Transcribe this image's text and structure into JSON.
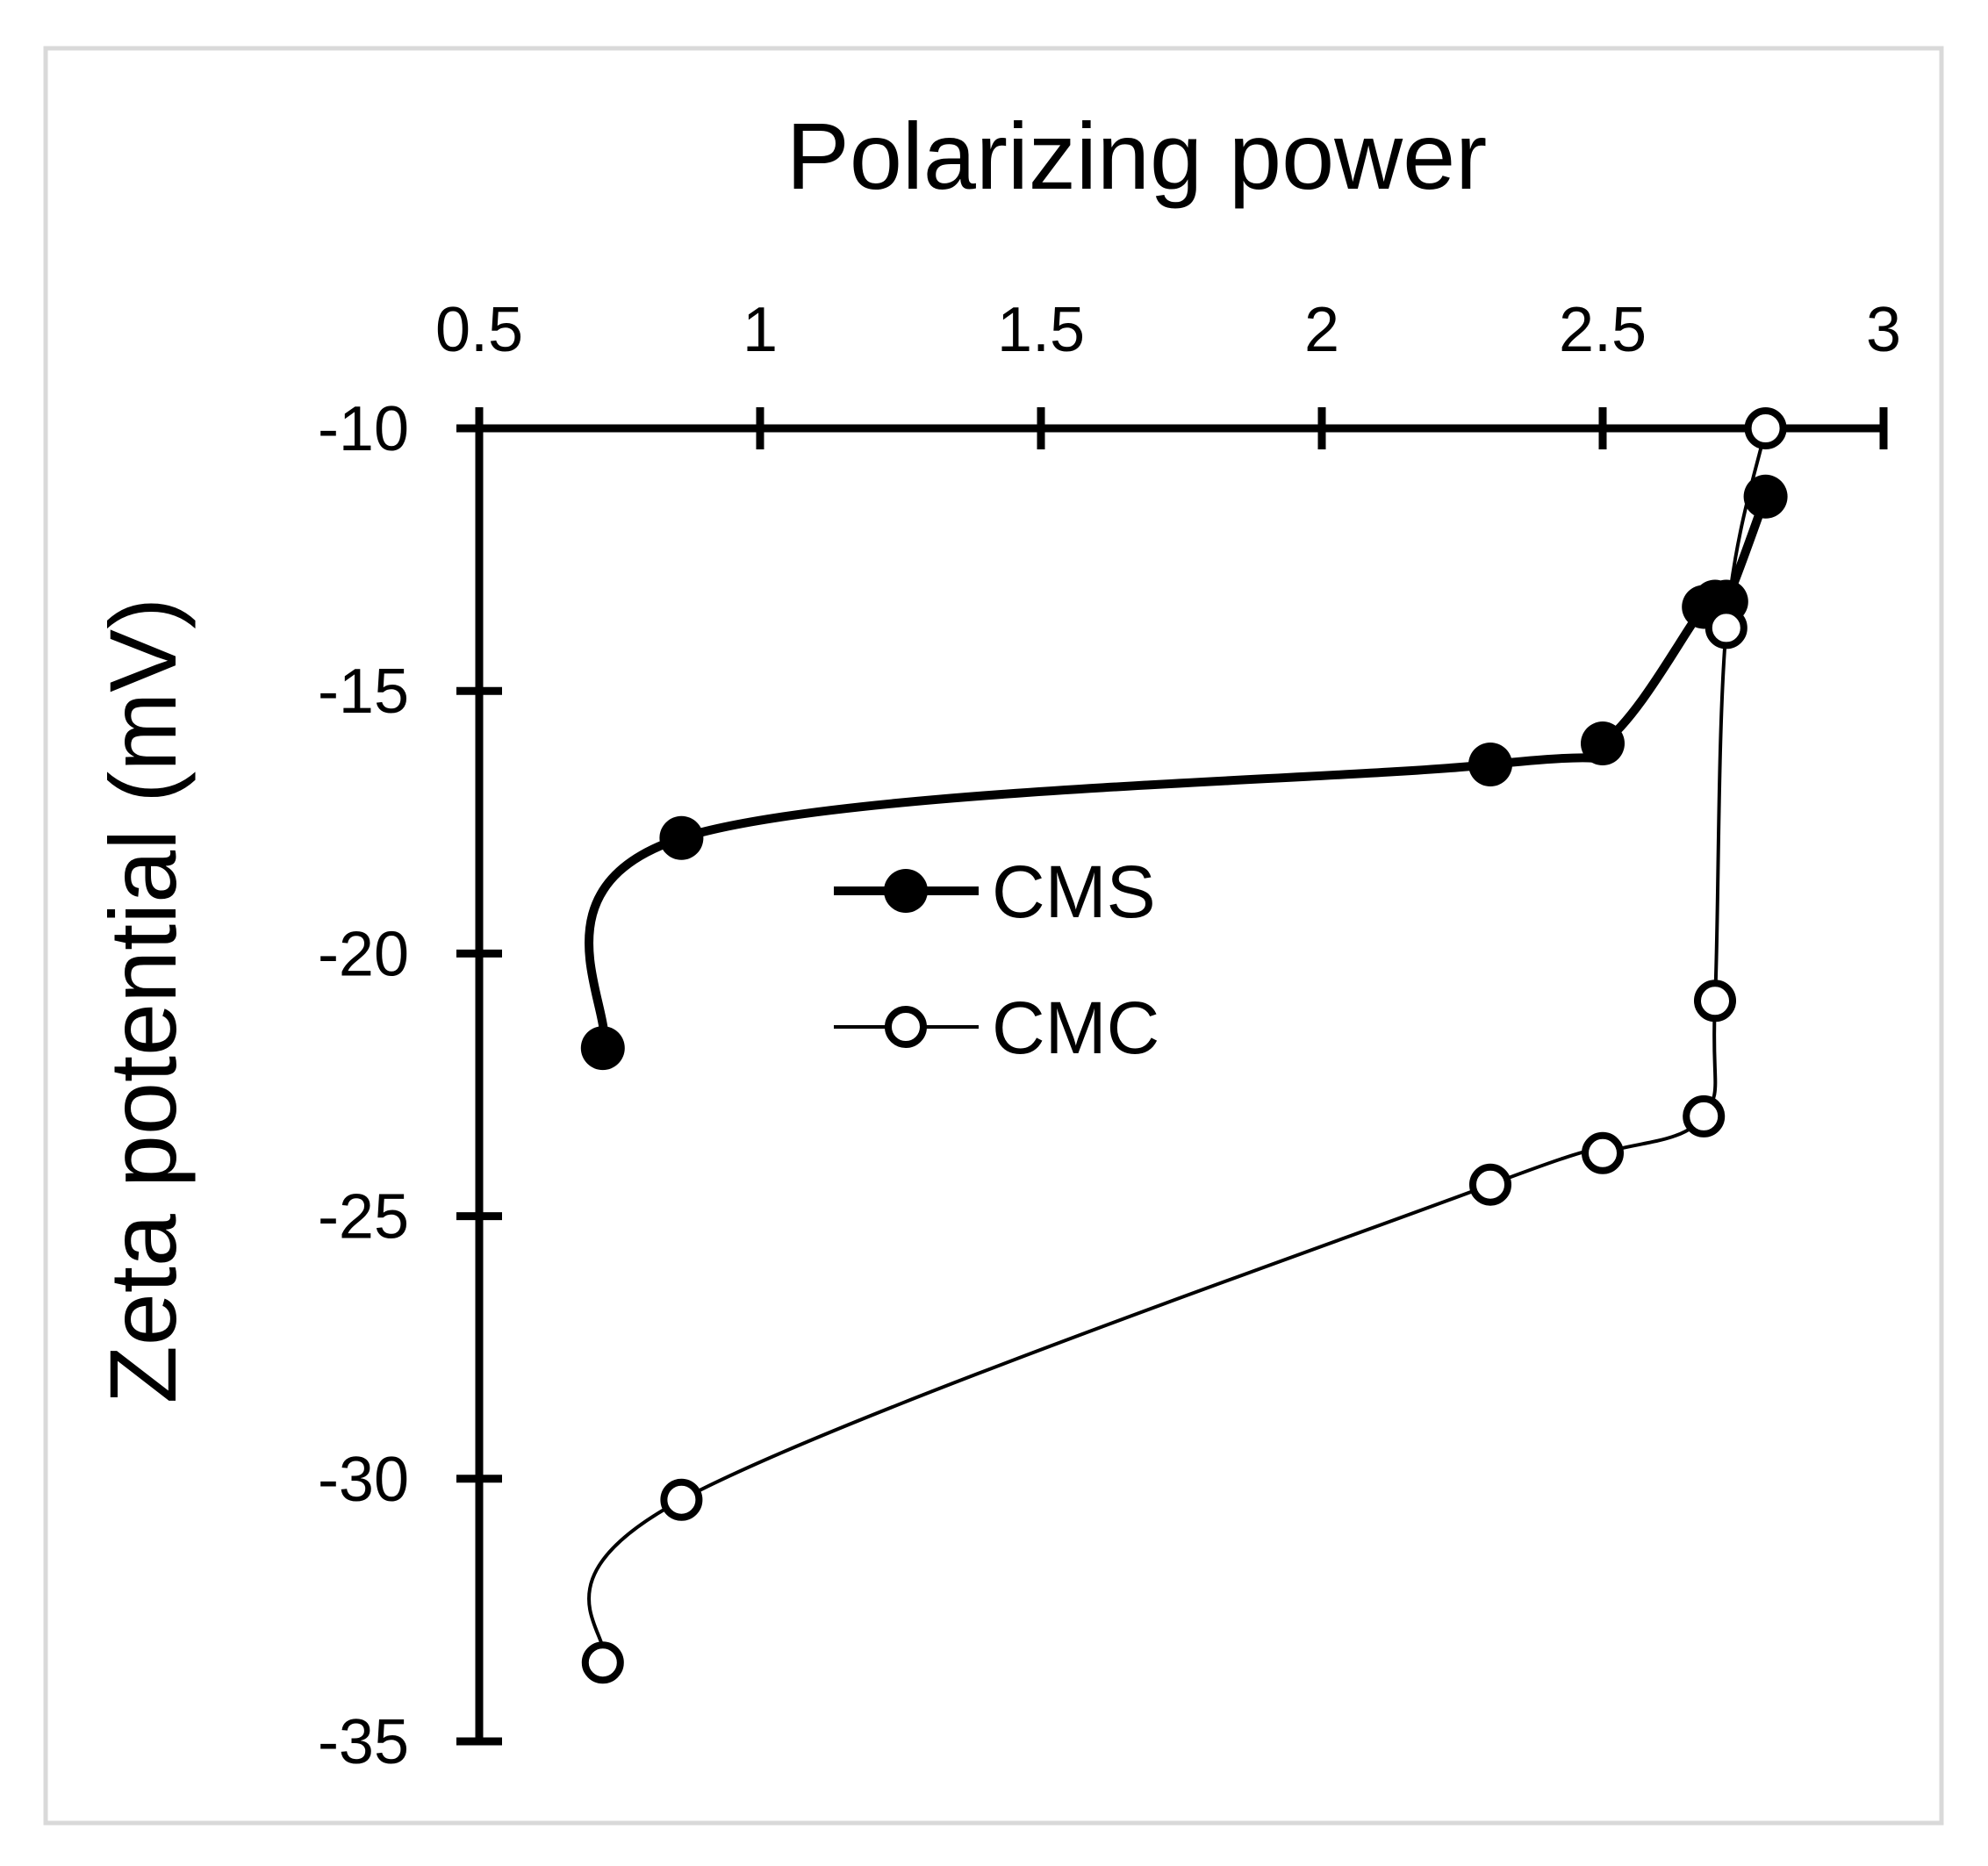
{
  "chart_data": {
    "type": "line",
    "title": "",
    "xlabel": "Polarizing power",
    "ylabel": "Zeta potential (mV)",
    "x_axis_position": "top",
    "xlim": [
      0.5,
      3
    ],
    "ylim": [
      -35,
      -10
    ],
    "x_ticks": [
      0.5,
      1,
      1.5,
      2,
      2.5,
      3
    ],
    "x_tick_labels": [
      "0.5",
      "1",
      "1.5",
      "2",
      "2.5",
      "3"
    ],
    "y_ticks": [
      -10,
      -15,
      -20,
      -25,
      -30,
      -35
    ],
    "y_tick_labels": [
      "-10",
      "-15",
      "-20",
      "-25",
      "-30",
      "-35"
    ],
    "grid": false,
    "legend_position": "center-left",
    "series": [
      {
        "name": "CMS",
        "marker": "filled-circle",
        "line": "thick",
        "x": [
          0.72,
          0.86,
          2.3,
          2.5,
          2.68,
          2.7,
          2.72,
          2.79
        ],
        "y": [
          -21.8,
          -17.8,
          -16.4,
          -16.0,
          -13.4,
          -13.3,
          -13.3,
          -11.3
        ]
      },
      {
        "name": "CMC",
        "marker": "open-circle",
        "line": "thin",
        "x": [
          0.72,
          0.86,
          2.3,
          2.5,
          2.68,
          2.7,
          2.72,
          2.79
        ],
        "y": [
          -33.5,
          -30.4,
          -24.4,
          -23.8,
          -23.1,
          -20.9,
          -13.8,
          -10.0
        ]
      }
    ]
  }
}
